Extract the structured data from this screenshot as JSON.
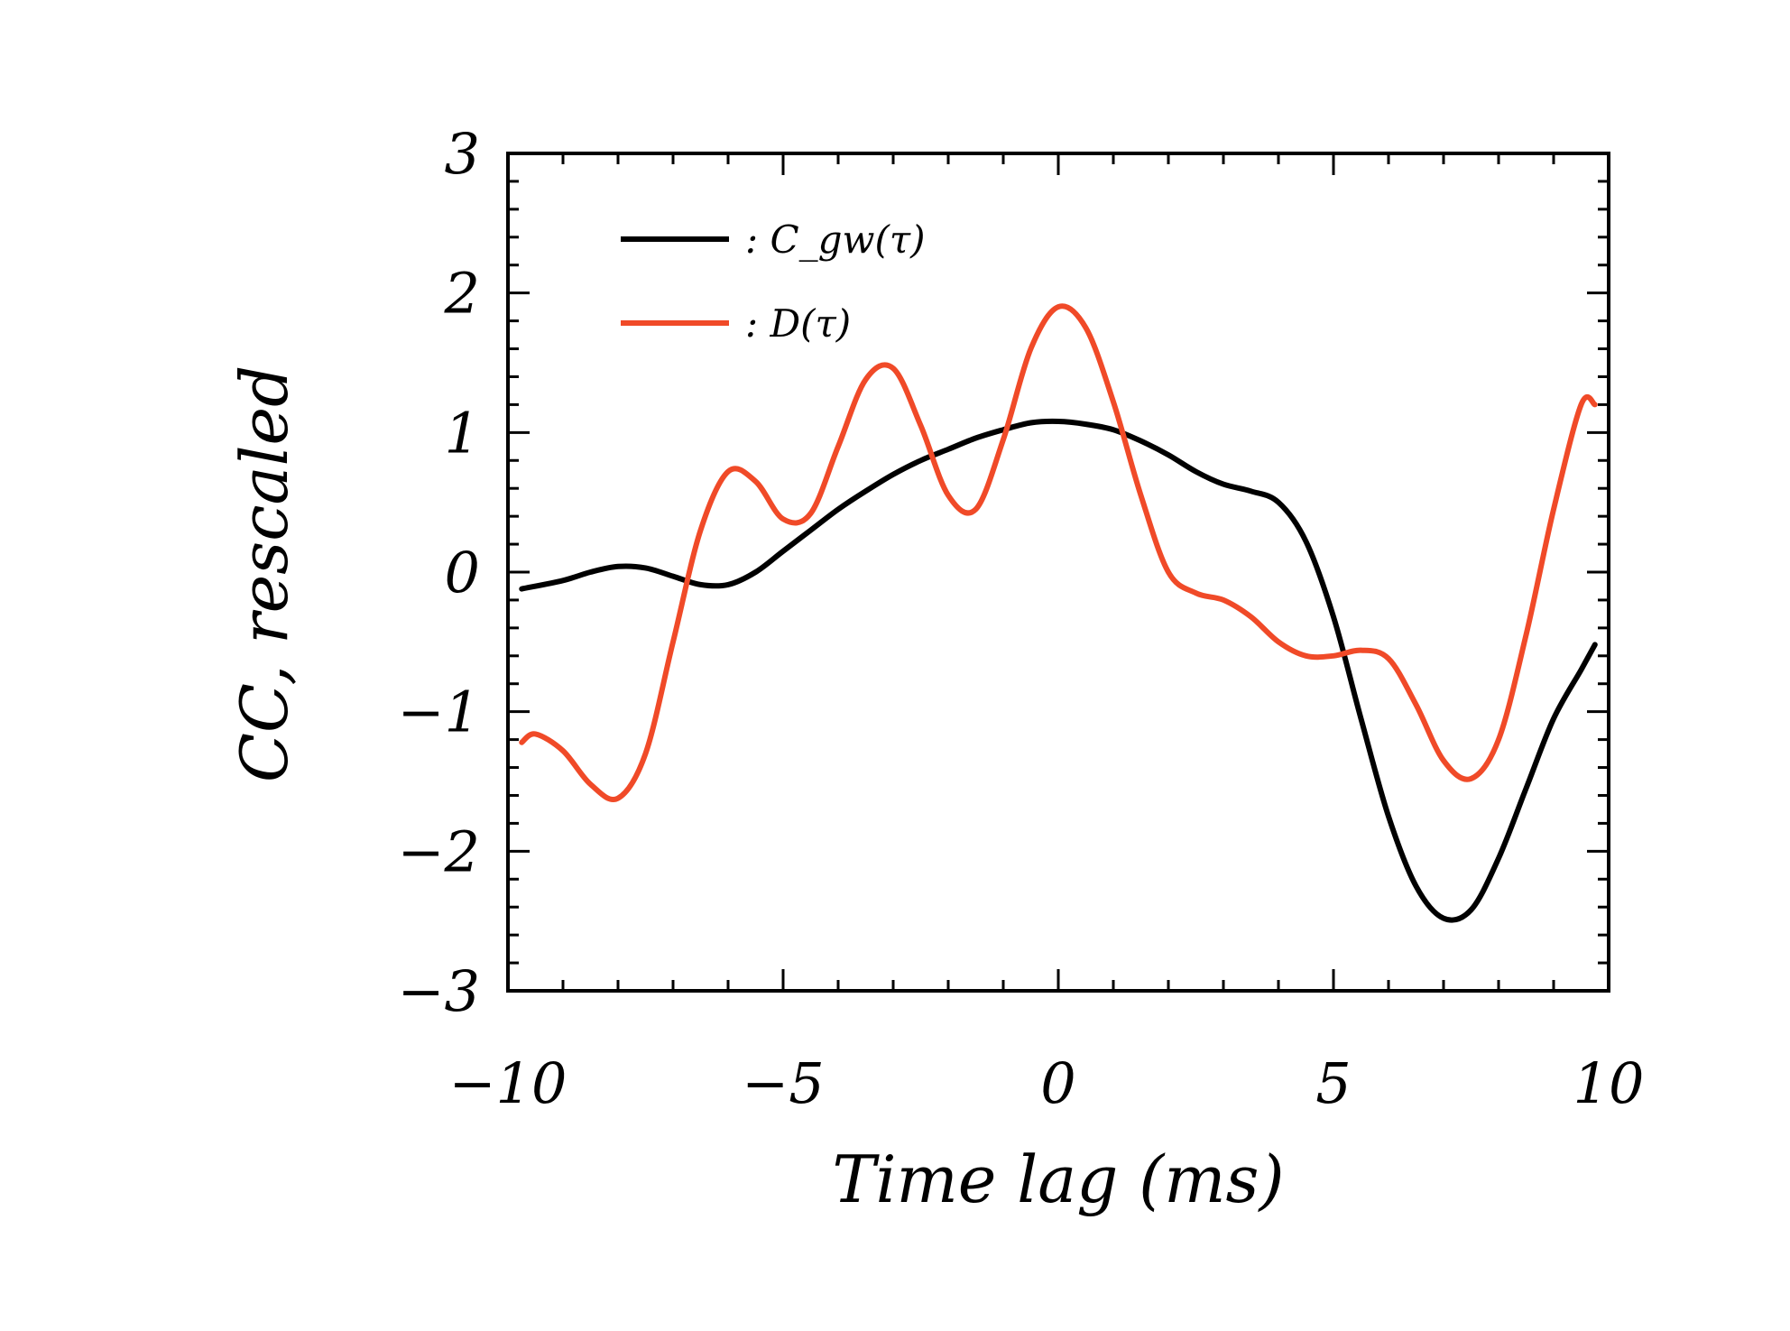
{
  "chart_data": {
    "type": "line",
    "title": "",
    "xlabel": "Time lag (ms)",
    "ylabel": "CC, rescaled",
    "xlim": [
      -10,
      10
    ],
    "ylim": [
      -3,
      3
    ],
    "xticks": [
      -10,
      -5,
      0,
      5,
      10
    ],
    "xtick_labels": [
      "−10",
      "−5",
      "0",
      "5",
      "10"
    ],
    "yticks": [
      -3,
      -2,
      -1,
      0,
      1,
      2,
      3
    ],
    "ytick_labels": [
      "−3",
      "−2",
      "−1",
      "0",
      "1",
      "2",
      "3"
    ],
    "grid": false,
    "legend_position": "top-left",
    "series": [
      {
        "name": ": C_gw(τ)",
        "color": "#000000",
        "x": [
          -9.75,
          -9.0,
          -8.5,
          -8.0,
          -7.5,
          -7.0,
          -6.5,
          -6.0,
          -5.5,
          -5.0,
          -4.5,
          -4.0,
          -3.5,
          -3.0,
          -2.5,
          -2.0,
          -1.5,
          -1.0,
          -0.5,
          0.0,
          0.5,
          1.0,
          1.5,
          2.0,
          2.5,
          3.0,
          3.5,
          4.0,
          4.5,
          5.0,
          5.5,
          6.0,
          6.5,
          7.0,
          7.5,
          8.0,
          8.5,
          9.0,
          9.5,
          9.75
        ],
        "y": [
          -0.12,
          -0.06,
          0.0,
          0.04,
          0.03,
          -0.03,
          -0.09,
          -0.09,
          0.0,
          0.15,
          0.3,
          0.45,
          0.58,
          0.7,
          0.8,
          0.88,
          0.96,
          1.02,
          1.07,
          1.08,
          1.06,
          1.02,
          0.94,
          0.84,
          0.72,
          0.63,
          0.58,
          0.5,
          0.22,
          -0.32,
          -1.05,
          -1.75,
          -2.25,
          -2.48,
          -2.42,
          -2.05,
          -1.55,
          -1.05,
          -0.7,
          -0.52
        ]
      },
      {
        "name": ": D(τ)",
        "color": "#F04A28",
        "x": [
          -9.75,
          -9.5,
          -9.0,
          -8.5,
          -8.0,
          -7.5,
          -7.0,
          -6.5,
          -6.0,
          -5.5,
          -5.0,
          -4.5,
          -4.0,
          -3.5,
          -3.0,
          -2.5,
          -2.0,
          -1.5,
          -1.0,
          -0.5,
          0.0,
          0.5,
          1.0,
          1.5,
          2.0,
          2.5,
          3.0,
          3.5,
          4.0,
          4.5,
          5.0,
          5.5,
          6.0,
          6.5,
          7.0,
          7.5,
          8.0,
          8.5,
          9.0,
          9.5,
          9.75
        ],
        "y": [
          -1.22,
          -1.16,
          -1.28,
          -1.52,
          -1.62,
          -1.3,
          -0.5,
          0.3,
          0.72,
          0.65,
          0.38,
          0.42,
          0.9,
          1.38,
          1.46,
          1.05,
          0.55,
          0.45,
          0.95,
          1.6,
          1.9,
          1.75,
          1.22,
          0.55,
          0.0,
          -0.15,
          -0.2,
          -0.32,
          -0.5,
          -0.6,
          -0.6,
          -0.56,
          -0.62,
          -0.95,
          -1.35,
          -1.48,
          -1.2,
          -0.45,
          0.45,
          1.2,
          1.2
        ]
      }
    ]
  }
}
